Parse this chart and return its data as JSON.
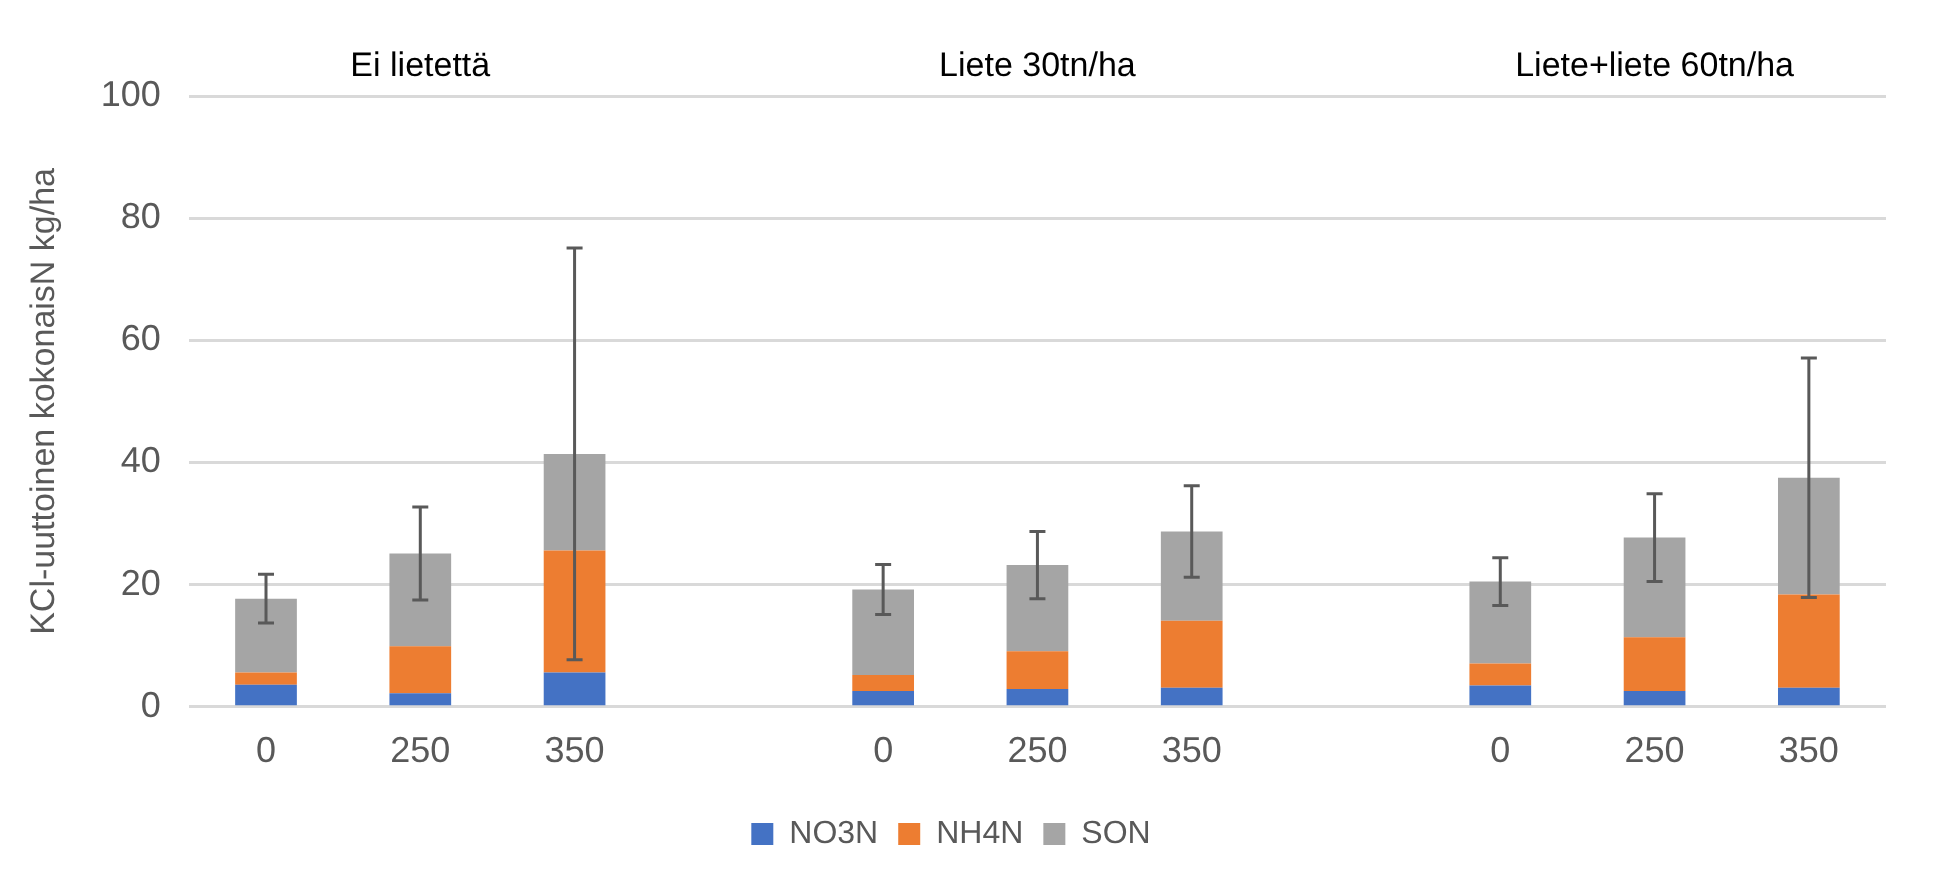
{
  "chart_data": {
    "type": "bar",
    "stacked": true,
    "categories": [
      "0",
      "250",
      "350",
      null,
      "0",
      "250",
      "350",
      null,
      "0",
      "250",
      "350"
    ],
    "series": [
      {
        "name": "NO3N",
        "color": "#4472c4",
        "values": [
          3.6,
          2.2,
          5.6,
          null,
          2.6,
          2.9,
          3.1,
          null,
          3.5,
          2.6,
          3.1
        ]
      },
      {
        "name": "NH4N",
        "color": "#ed7d31",
        "values": [
          2.0,
          7.7,
          20.0,
          null,
          2.6,
          6.2,
          11.0,
          null,
          3.6,
          8.8,
          15.3
        ]
      },
      {
        "name": "SON",
        "color": "#a5a5a5",
        "values": [
          12.1,
          15.2,
          15.8,
          null,
          14.0,
          14.1,
          14.6,
          null,
          13.4,
          16.3,
          19.1
        ],
        "errors": [
          4,
          7.6,
          33.7,
          null,
          4.1,
          5.5,
          7.5,
          null,
          3.9,
          7.2,
          19.6
        ]
      }
    ],
    "ylabel": "KCl-uuttoinen kokonaisN kg/ha",
    "ylim": [
      0,
      100
    ],
    "yticks": [
      0,
      20,
      40,
      60,
      80,
      100
    ],
    "grid": "y",
    "legend": "bottom",
    "annotations": [
      "Ei lietettä",
      "Liete 30tn/ha",
      "Liete+liete 60tn/ha"
    ]
  }
}
